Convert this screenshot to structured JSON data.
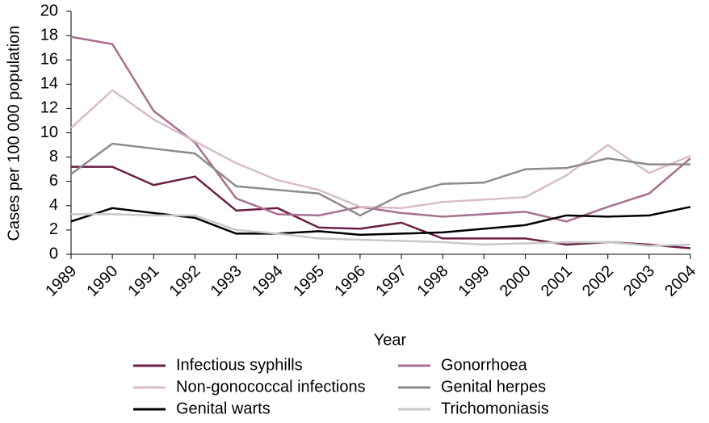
{
  "chart_data": {
    "type": "line",
    "x_label": "Year",
    "y_label": "Cases per 100 000 population",
    "categories": [
      "1989",
      "1990",
      "1991",
      "1992",
      "1993",
      "1994",
      "1995",
      "1996",
      "1997",
      "1998",
      "1999",
      "2000",
      "2001",
      "2002",
      "2003",
      "2004"
    ],
    "series": [
      {
        "name": "Infectious syphills",
        "color": "#6b1e44",
        "values": [
          7.2,
          7.2,
          5.7,
          6.4,
          3.6,
          3.8,
          2.2,
          2.1,
          2.6,
          1.3,
          1.3,
          1.3,
          0.8,
          1.0,
          0.8,
          0.5
        ]
      },
      {
        "name": "Gonorrhoea",
        "color": "#a8708f",
        "values": [
          17.9,
          17.3,
          11.8,
          9.2,
          4.6,
          3.3,
          3.2,
          3.9,
          3.4,
          3.1,
          3.3,
          3.5,
          2.7,
          3.9,
          5.0,
          7.9
        ]
      },
      {
        "name": "Non-gonococcal infections",
        "color": "#d9bccb",
        "values": [
          10.4,
          13.5,
          11.1,
          9.3,
          7.5,
          6.1,
          5.3,
          3.9,
          3.8,
          4.3,
          4.5,
          4.7,
          6.5,
          9.0,
          6.7,
          8.1
        ]
      },
      {
        "name": "Genital herpes",
        "color": "#8c8c8c",
        "values": [
          6.6,
          9.1,
          8.7,
          8.3,
          5.6,
          5.3,
          5.0,
          3.2,
          4.9,
          5.8,
          5.9,
          7.0,
          7.1,
          7.9,
          7.4,
          7.4
        ]
      },
      {
        "name": "Genital warts",
        "color": "#000000",
        "values": [
          2.7,
          3.8,
          3.4,
          3.0,
          1.7,
          1.7,
          1.9,
          1.6,
          1.7,
          1.8,
          2.1,
          2.4,
          3.2,
          3.1,
          3.2,
          3.9
        ]
      },
      {
        "name": "Trichomoniasis",
        "color": "#c8c8c8",
        "values": [
          3.3,
          3.3,
          3.2,
          3.2,
          2.0,
          1.7,
          1.3,
          1.2,
          1.1,
          1.0,
          0.8,
          0.9,
          1.0,
          1.0,
          0.7,
          0.8
        ]
      }
    ],
    "ylim": [
      0,
      20
    ],
    "yticks": [
      0,
      2,
      4,
      6,
      8,
      10,
      12,
      14,
      16,
      18,
      20
    ]
  }
}
